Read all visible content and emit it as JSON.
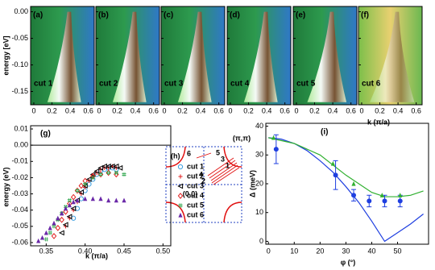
{
  "chart_data": [
    {
      "type": "heatmap",
      "ylabel": "energy [eV]",
      "xlabel": "k (π/a)",
      "panels": [
        {
          "label": "(a)",
          "cut": "cut 1"
        },
        {
          "label": "(b)",
          "cut": "cut 2"
        },
        {
          "label": "(c)",
          "cut": "cut 3"
        },
        {
          "label": "(d)",
          "cut": "cut 4"
        },
        {
          "label": "(e)",
          "cut": "cut 5"
        },
        {
          "label": "(f)",
          "cut": "cut 6"
        }
      ],
      "xlim": [
        -0.035,
        0.665
      ],
      "ylim": [
        -0.175,
        0.01
      ],
      "xticks": [
        0,
        0.2,
        0.4,
        0.6
      ],
      "yticks": [
        {
          "value": 0,
          "label": "0.00"
        },
        -0.05,
        {
          "value": -0.1,
          "label": "-0.10"
        },
        -0.15
      ]
    },
    {
      "type": "scatter",
      "label": "(g)",
      "xlabel": "k (π/a)",
      "ylabel": "energy (eV)",
      "xlim": [
        0.33,
        0.51
      ],
      "ylim": [
        -0.062,
        0.01
      ],
      "xticks": [
        0.35,
        {
          "value": 0.4,
          "label": "0.40"
        },
        0.45,
        {
          "value": 0.5,
          "label": "0.50"
        }
      ],
      "yticks": [
        0.01,
        {
          "value": 0,
          "label": "0.00"
        },
        -0.01,
        -0.02,
        -0.03,
        -0.04,
        -0.05,
        -0.06
      ],
      "legend": "right",
      "series": [
        {
          "name": "cut 1",
          "color": "#3a9ee0",
          "marker": "circle",
          "x": [
            0.385,
            0.39,
            0.395,
            0.4,
            0.405,
            0.41,
            0.415,
            0.42,
            0.425,
            0.43,
            0.435,
            0.44
          ],
          "values": [
            -0.045,
            -0.039,
            -0.033,
            -0.028,
            -0.024,
            -0.021,
            -0.018,
            -0.016,
            -0.015,
            -0.014,
            -0.014,
            -0.015
          ]
        },
        {
          "name": "cut 2",
          "color": "#e02020",
          "marker": "plus",
          "x": [
            0.375,
            0.38,
            0.385,
            0.39,
            0.395,
            0.4,
            0.405,
            0.41,
            0.415,
            0.42,
            0.425,
            0.43,
            0.435,
            0.44
          ],
          "values": [
            -0.05,
            -0.045,
            -0.04,
            -0.035,
            -0.03,
            -0.026,
            -0.022,
            -0.019,
            -0.017,
            -0.015,
            -0.014,
            -0.014,
            -0.013,
            -0.014
          ]
        },
        {
          "name": "cut 3",
          "color": "#000000",
          "marker": "triangle-left",
          "x": [
            0.37,
            0.375,
            0.38,
            0.385,
            0.39,
            0.395,
            0.4,
            0.405,
            0.41,
            0.415,
            0.42,
            0.425,
            0.43,
            0.435,
            0.44,
            0.445
          ],
          "values": [
            -0.054,
            -0.049,
            -0.044,
            -0.039,
            -0.034,
            -0.029,
            -0.025,
            -0.021,
            -0.018,
            -0.016,
            -0.014,
            -0.013,
            -0.013,
            -0.013,
            -0.013,
            -0.014
          ]
        },
        {
          "name": "cut 4",
          "color": "#e02020",
          "marker": "diamond",
          "x": [
            0.36,
            0.365,
            0.37,
            0.375,
            0.38,
            0.385,
            0.39,
            0.395,
            0.4,
            0.41,
            0.42,
            0.43,
            0.44
          ],
          "values": [
            -0.056,
            -0.051,
            -0.046,
            -0.041,
            -0.036,
            -0.032,
            -0.028,
            -0.025,
            -0.022,
            -0.019,
            -0.018,
            -0.017,
            -0.018
          ]
        },
        {
          "name": "cut 5",
          "color": "#20a040",
          "marker": "hash",
          "x": [
            0.35,
            0.355,
            0.36,
            0.365,
            0.37,
            0.375,
            0.38,
            0.39,
            0.4,
            0.41,
            0.42,
            0.43,
            0.44,
            0.45
          ],
          "values": [
            -0.058,
            -0.054,
            -0.05,
            -0.046,
            -0.042,
            -0.038,
            -0.034,
            -0.028,
            -0.024,
            -0.02,
            -0.018,
            -0.017,
            -0.017,
            -0.018
          ]
        },
        {
          "name": "cut 6",
          "color": "#6a28a8",
          "marker": "triangle-up",
          "x": [
            0.34,
            0.345,
            0.35,
            0.355,
            0.36,
            0.365,
            0.37,
            0.375,
            0.38,
            0.385,
            0.39,
            0.4,
            0.41,
            0.42,
            0.43,
            0.44,
            0.45
          ],
          "values": [
            -0.059,
            -0.057,
            -0.054,
            -0.051,
            -0.048,
            -0.045,
            -0.042,
            -0.039,
            -0.037,
            -0.035,
            -0.034,
            -0.033,
            -0.033,
            -0.033,
            -0.034,
            -0.034,
            -0.034
          ]
        }
      ]
    },
    {
      "type": "diagram",
      "label": "(h)",
      "labels": [
        "(π,π)",
        "(0,0)",
        "6",
        "5",
        "3",
        "1",
        "4",
        "2"
      ]
    },
    {
      "type": "line",
      "label": "(i)",
      "xlabel": "φ (°)",
      "ylabel": "Δ (meV)",
      "xlim": [
        -1,
        62
      ],
      "ylim": [
        -1,
        41
      ],
      "xticks": [
        0,
        10,
        20,
        30,
        40,
        50
      ],
      "yticks": [
        0,
        10,
        20,
        30,
        40
      ],
      "series": [
        {
          "color": "#1f3fe0",
          "style": "line",
          "x": [
            0,
            5,
            10,
            15,
            20,
            25,
            30,
            35,
            40,
            45,
            50,
            55,
            60
          ],
          "values": [
            36,
            35.5,
            34,
            31.5,
            28,
            24,
            19,
            13.5,
            7,
            0,
            3,
            6,
            9.5
          ]
        },
        {
          "color": "#30b030",
          "style": "line",
          "x": [
            0,
            10,
            20,
            30,
            40,
            45,
            50,
            55,
            60
          ],
          "values": [
            36,
            34,
            30,
            23,
            17,
            15.5,
            15.5,
            16,
            17.5
          ]
        },
        {
          "color": "#1f3fe0",
          "marker": "circle-filled",
          "x": [
            3,
            26,
            33,
            39,
            45,
            51
          ],
          "values": [
            32,
            23,
            16,
            14,
            14,
            14
          ],
          "errors": [
            5,
            5,
            2,
            2,
            2,
            2
          ]
        },
        {
          "color": "#30b030",
          "marker": "triangle-up",
          "x": [
            2,
            25,
            33,
            44,
            51
          ],
          "values": [
            36,
            27,
            20,
            16,
            16
          ]
        }
      ]
    }
  ]
}
